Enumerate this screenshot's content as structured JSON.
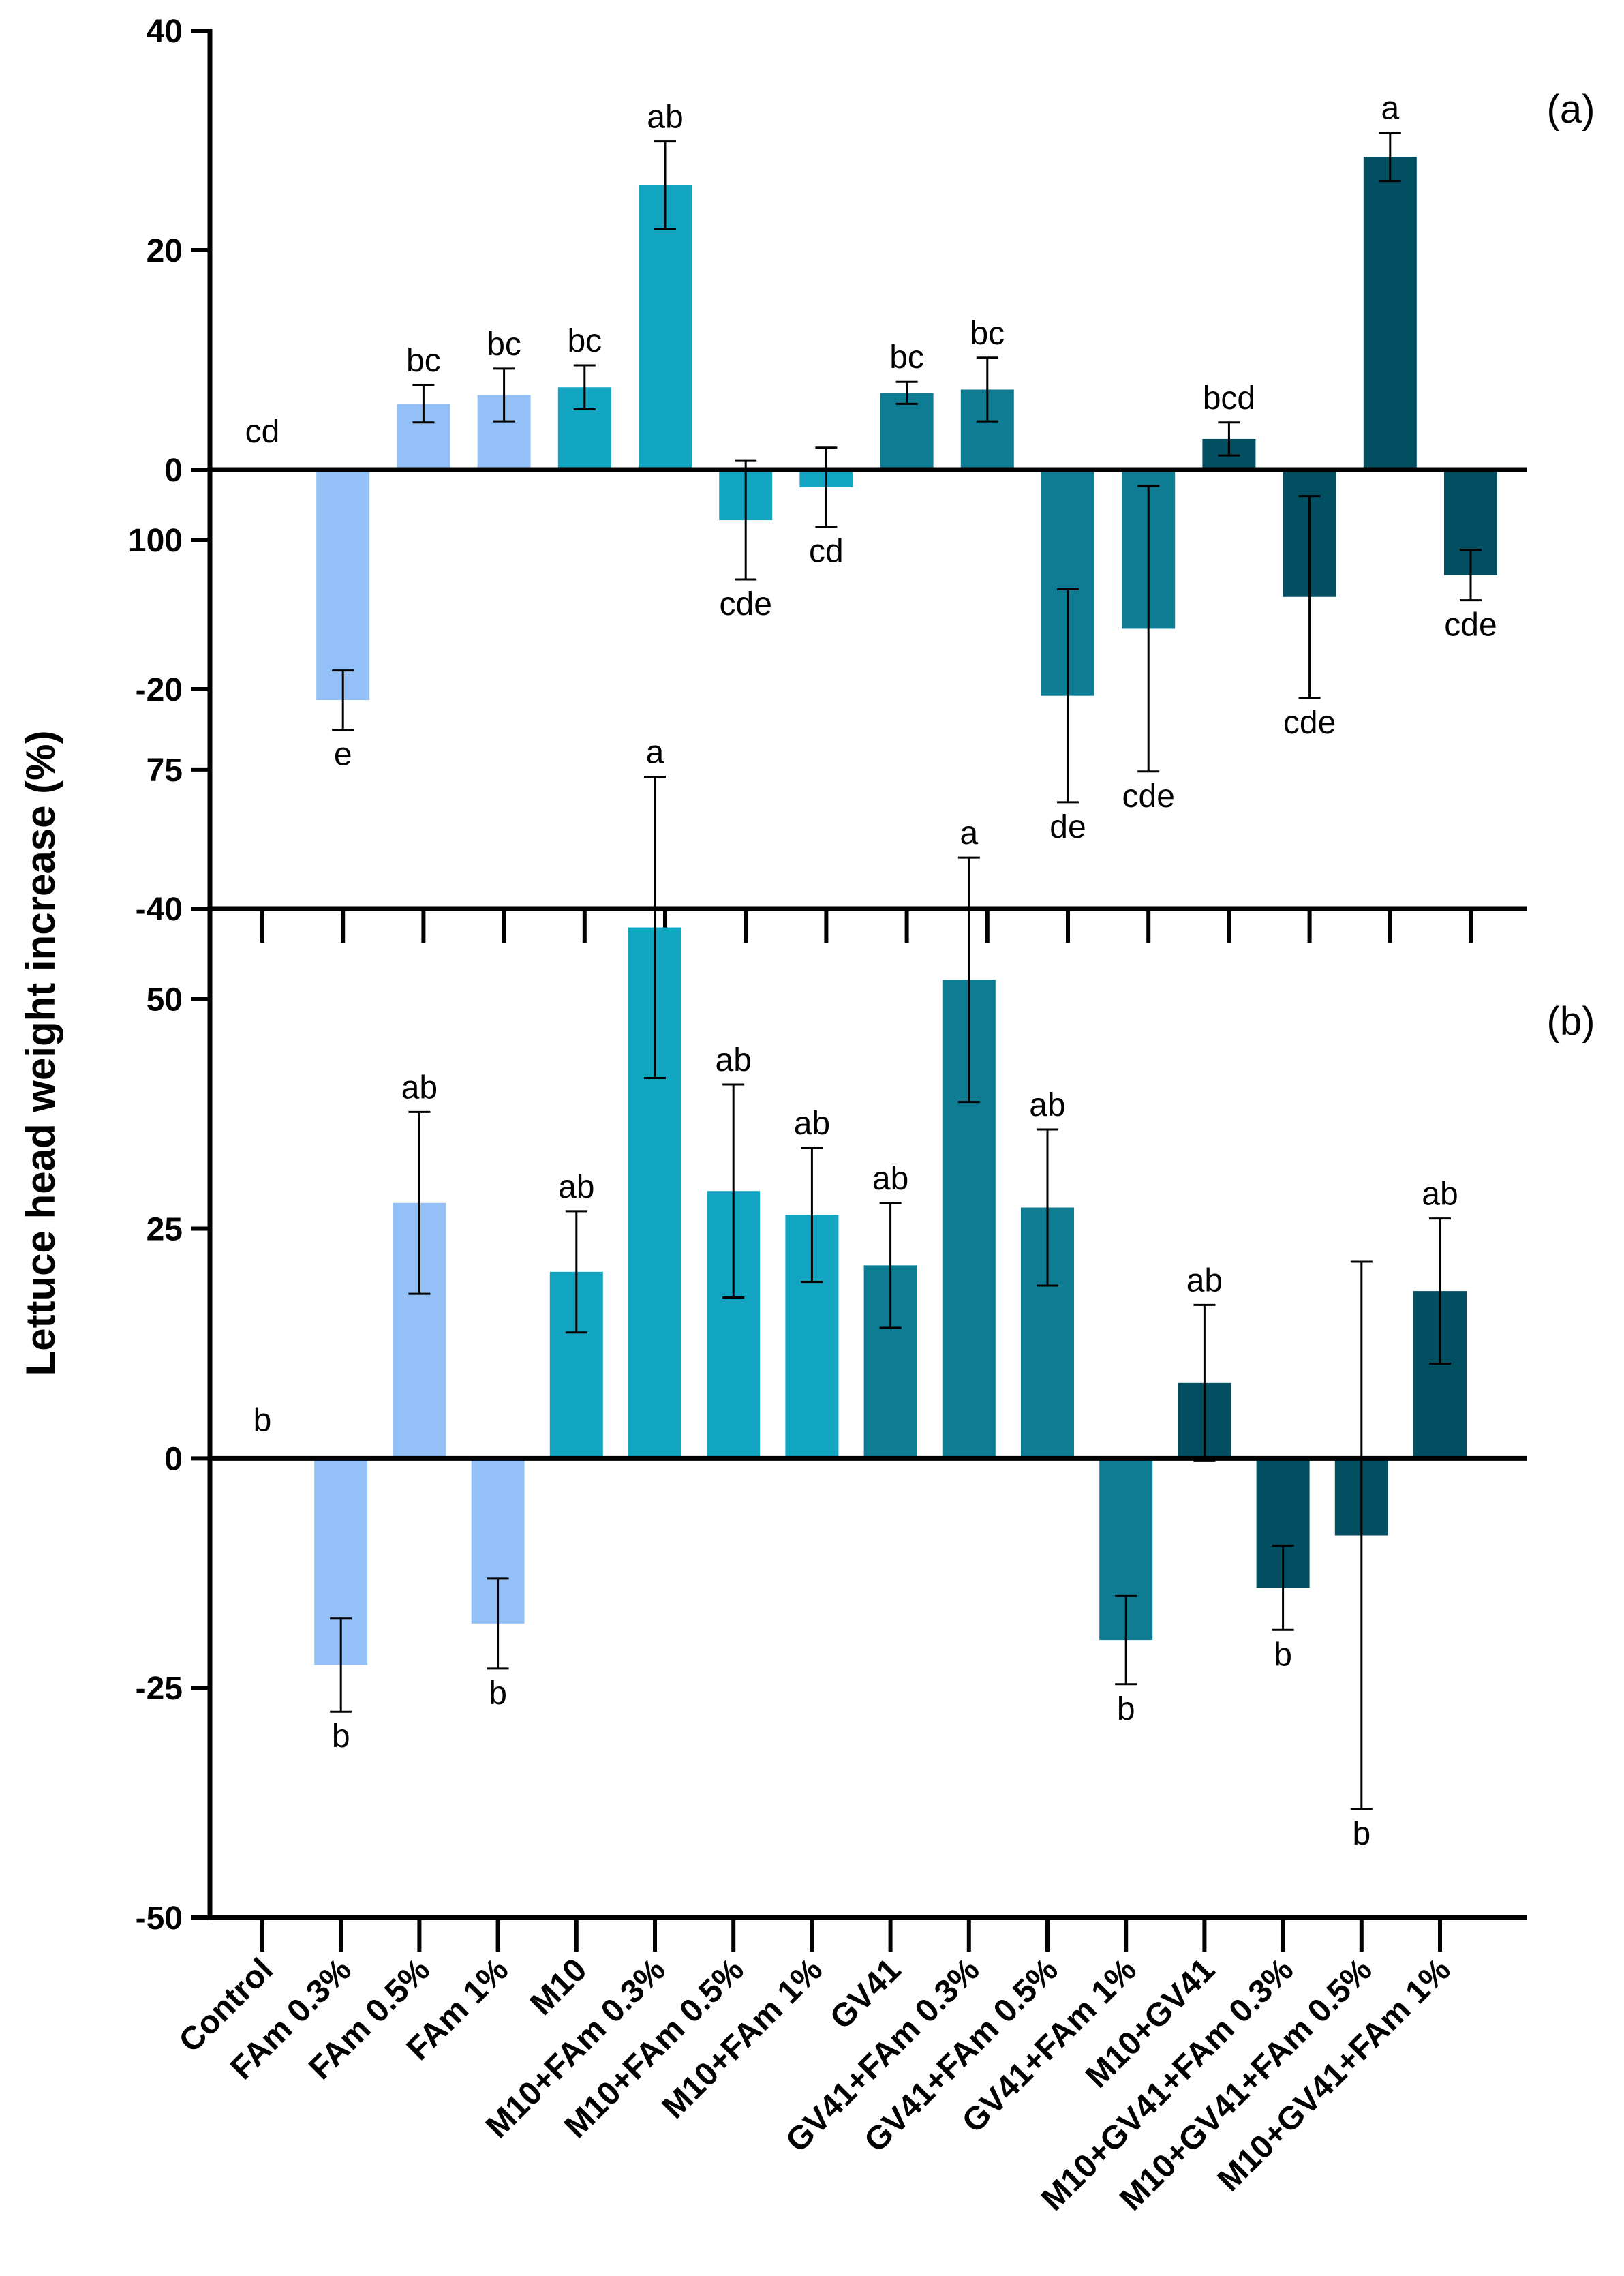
{
  "ylabel": "Lettuce head weight increase (%)",
  "categories": [
    "Control",
    "FAm 0.3%",
    "FAm 0.5%",
    "FAm 1%",
    "M10",
    "M10+FAm 0.3%",
    "M10+FAm 0.5%",
    "M10+FAm 1%",
    "GV41",
    "GV41+FAm 0.3%",
    "GV41+FAm 0.5%",
    "GV41+FAm 1%",
    "M10+GV41",
    "M10+GV41+FAm 0.3%",
    "M10+GV41+FAm 0.5%",
    "M10+GV41+FAm 1%"
  ],
  "colors": [
    "#93c1f7",
    "#93c1f7",
    "#93c1f7",
    "#93c1f7",
    "#12a5c1",
    "#12a5c1",
    "#12a5c1",
    "#12a5c1",
    "#0e7d94",
    "#0e7d94",
    "#0e7d94",
    "#0e7d94",
    "#034f62",
    "#034f62",
    "#034f62",
    "#034f62"
  ],
  "chart_data": [
    {
      "type": "bar",
      "panel_label": "(a)",
      "ylim": [
        -40,
        40
      ],
      "yticks": [
        -40,
        -20,
        0,
        20,
        40
      ],
      "ytick_labels": [
        "-40",
        "-20",
        "0",
        "20",
        "40"
      ],
      "values": [
        0,
        -21,
        6,
        6.8,
        7.5,
        25.9,
        -4.6,
        -1.6,
        7,
        7.3,
        -20.6,
        -14.5,
        2.8,
        -11.6,
        28.5,
        -9.6
      ],
      "errors": [
        0,
        2.7,
        1.7,
        2.4,
        2,
        4,
        5.4,
        3.6,
        1,
        2.9,
        9.7,
        13,
        1.5,
        9.2,
        2.2,
        2.3
      ],
      "letters": [
        "cd",
        "e",
        "bc",
        "bc",
        "bc",
        "ab",
        "cde",
        "cd",
        "bc",
        "bc",
        "de",
        "cde",
        "bcd",
        "cde",
        "a",
        "cde"
      ]
    },
    {
      "type": "bar",
      "panel_label": "(b)",
      "ylim": [
        -50,
        100
      ],
      "yticks": [
        -50,
        -25,
        0,
        25,
        50,
        75,
        100
      ],
      "ytick_labels": [
        "-50",
        "-25",
        "0",
        "25",
        "50",
        "75",
        "100"
      ],
      "values": [
        0,
        -22.5,
        27.8,
        -18,
        20.3,
        57.8,
        29.1,
        26.5,
        21,
        52.1,
        27.3,
        -19.8,
        8.2,
        -14.1,
        -8.4,
        18.2
      ],
      "errors": [
        0,
        5.1,
        9.9,
        4.9,
        6.6,
        16.4,
        11.6,
        7.3,
        6.8,
        13.3,
        8.5,
        4.8,
        8.5,
        4.6,
        29.8,
        7.9
      ],
      "letters": [
        "b",
        "b",
        "ab",
        "b",
        "ab",
        "a",
        "ab",
        "ab",
        "ab",
        "a",
        "ab",
        "b",
        "ab",
        "b",
        "b",
        "ab"
      ]
    }
  ]
}
